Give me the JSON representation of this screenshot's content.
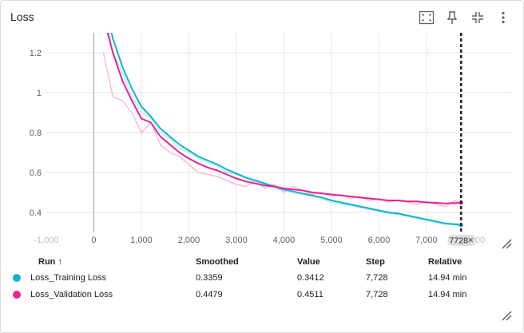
{
  "card": {
    "title": "Loss"
  },
  "toolbar": {
    "buttons": [
      {
        "name": "fit-domain-icon",
        "label": ""
      },
      {
        "name": "pin-icon",
        "label": ""
      },
      {
        "name": "collapse-icon",
        "label": ""
      },
      {
        "name": "more-vert-icon",
        "label": ""
      }
    ]
  },
  "chart_data": {
    "type": "line",
    "title": "Loss",
    "xlabel": "",
    "ylabel": "",
    "xlim": [
      -1000,
      8800
    ],
    "ylim": [
      0.3,
      1.3
    ],
    "x_ticks": [
      {
        "value": -1000,
        "label": "-1,000",
        "faded": true
      },
      {
        "value": 0,
        "label": "0"
      },
      {
        "value": 1000,
        "label": "1,000"
      },
      {
        "value": 2000,
        "label": "2,000"
      },
      {
        "value": 3000,
        "label": "3,000"
      },
      {
        "value": 4000,
        "label": "4,000"
      },
      {
        "value": 5000,
        "label": "5,000"
      },
      {
        "value": 6000,
        "label": "6,000"
      },
      {
        "value": 7000,
        "label": "7,000"
      },
      {
        "value": 8000,
        "label": "8,000",
        "faded": true
      }
    ],
    "y_ticks": [
      {
        "value": 0.4,
        "label": "0.4"
      },
      {
        "value": 0.6,
        "label": "0.6"
      },
      {
        "value": 0.8,
        "label": "0.8"
      },
      {
        "value": 1.0,
        "label": "1"
      },
      {
        "value": 1.2,
        "label": "1.2"
      }
    ],
    "cursor": {
      "step": 7728,
      "label": "7728"
    },
    "series": [
      {
        "name": "Loss_Training Loss",
        "color": "#12b5cb",
        "raw_color": "#b2ebf2",
        "x": [
          200,
          400,
          600,
          800,
          1000,
          1200,
          1400,
          1600,
          1800,
          2000,
          2200,
          2400,
          2600,
          2800,
          3000,
          3200,
          3400,
          3600,
          3800,
          4000,
          4200,
          4400,
          4600,
          4800,
          5000,
          5200,
          5400,
          5600,
          5800,
          6000,
          6200,
          6400,
          6600,
          6800,
          7000,
          7200,
          7400,
          7600,
          7728
        ],
        "smoothed": [
          1.48,
          1.27,
          1.13,
          1.02,
          0.93,
          0.88,
          0.82,
          0.78,
          0.74,
          0.71,
          0.68,
          0.66,
          0.64,
          0.615,
          0.595,
          0.575,
          0.56,
          0.545,
          0.53,
          0.515,
          0.505,
          0.495,
          0.485,
          0.475,
          0.46,
          0.45,
          0.44,
          0.43,
          0.42,
          0.41,
          0.4,
          0.395,
          0.385,
          0.375,
          0.365,
          0.355,
          0.345,
          0.34,
          0.3359
        ],
        "raw": [
          1.45,
          1.2,
          1.1,
          0.98,
          0.9,
          0.87,
          0.8,
          0.77,
          0.72,
          0.7,
          0.67,
          0.65,
          0.63,
          0.6,
          0.59,
          0.57,
          0.55,
          0.54,
          0.52,
          0.51,
          0.5,
          0.49,
          0.48,
          0.47,
          0.45,
          0.44,
          0.435,
          0.425,
          0.415,
          0.405,
          0.395,
          0.39,
          0.38,
          0.37,
          0.36,
          0.35,
          0.34,
          0.345,
          0.3412
        ]
      },
      {
        "name": "Loss_Validation Loss",
        "color": "#e52592",
        "raw_color": "#f8bbd9",
        "x": [
          200,
          400,
          600,
          800,
          1000,
          1200,
          1400,
          1600,
          1800,
          2000,
          2200,
          2400,
          2600,
          2800,
          3000,
          3200,
          3400,
          3600,
          3800,
          4000,
          4200,
          4400,
          4600,
          4800,
          5000,
          5200,
          5400,
          5600,
          5800,
          6000,
          6200,
          6400,
          6600,
          6800,
          7000,
          7200,
          7400,
          7600,
          7728
        ],
        "smoothed": [
          1.38,
          1.2,
          1.06,
          0.96,
          0.87,
          0.85,
          0.78,
          0.74,
          0.7,
          0.67,
          0.645,
          0.625,
          0.61,
          0.59,
          0.57,
          0.555,
          0.545,
          0.535,
          0.53,
          0.52,
          0.515,
          0.51,
          0.5,
          0.495,
          0.49,
          0.485,
          0.48,
          0.475,
          0.47,
          0.465,
          0.46,
          0.46,
          0.455,
          0.455,
          0.45,
          0.448,
          0.445,
          0.447,
          0.4479
        ],
        "raw": [
          1.2,
          0.98,
          0.96,
          0.9,
          0.8,
          0.85,
          0.74,
          0.7,
          0.68,
          0.64,
          0.6,
          0.59,
          0.58,
          0.56,
          0.54,
          0.53,
          0.56,
          0.52,
          0.54,
          0.5,
          0.53,
          0.51,
          0.49,
          0.5,
          0.48,
          0.49,
          0.47,
          0.48,
          0.46,
          0.47,
          0.45,
          0.46,
          0.45,
          0.44,
          0.455,
          0.44,
          0.43,
          0.46,
          0.4511
        ]
      }
    ]
  },
  "table": {
    "headers": {
      "run": "Run ↑",
      "smoothed": "Smoothed",
      "value": "Value",
      "step": "Step",
      "relative": "Relative"
    },
    "rows": [
      {
        "color": "#12b5cb",
        "run": "Loss_Training Loss",
        "smoothed": "0.3359",
        "value": "0.3412",
        "step": "7,728",
        "relative": "14.94 min"
      },
      {
        "color": "#e52592",
        "run": "Loss_Validation Loss",
        "smoothed": "0.4479",
        "value": "0.4511",
        "step": "7,728",
        "relative": "14.94 min"
      }
    ]
  }
}
